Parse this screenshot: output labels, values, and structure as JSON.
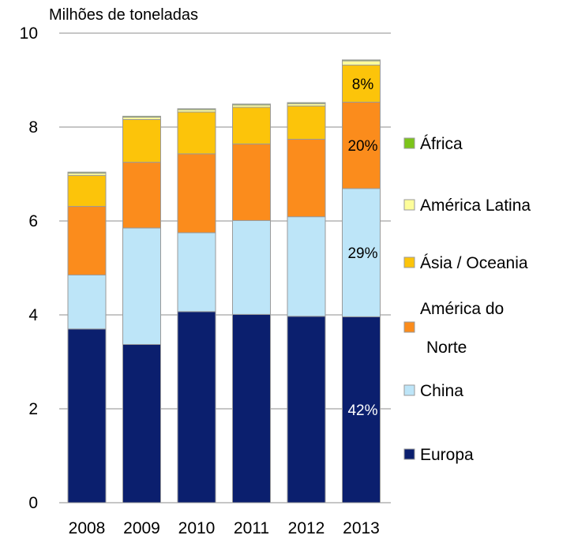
{
  "chart_data": {
    "type": "bar",
    "stacked": true,
    "title": "",
    "ylabel": "Milhões de toneladas",
    "xlabel": "",
    "ylim": [
      0,
      10
    ],
    "yticks": [
      0,
      2,
      4,
      6,
      8,
      10
    ],
    "grid": true,
    "legend_position": "right",
    "categories": [
      "2008",
      "2009",
      "2010",
      "2011",
      "2012",
      "2013"
    ],
    "series": [
      {
        "name": "Europa",
        "color": "#0b1f6e",
        "values": [
          3.7,
          3.37,
          4.07,
          4.01,
          3.97,
          3.96
        ]
      },
      {
        "name": "China",
        "color": "#bde5f8",
        "values": [
          1.15,
          2.48,
          1.68,
          2.0,
          2.12,
          2.73
        ]
      },
      {
        "name": "América do Norte",
        "color": "#fb8c1c",
        "values": [
          1.46,
          1.4,
          1.68,
          1.63,
          1.65,
          1.84
        ]
      },
      {
        "name": "Ásia / Oceania",
        "color": "#fcc40a",
        "values": [
          0.66,
          0.91,
          0.89,
          0.78,
          0.71,
          0.79
        ]
      },
      {
        "name": "América Latina",
        "color": "#fdfd9a",
        "values": [
          0.05,
          0.05,
          0.05,
          0.05,
          0.05,
          0.09
        ]
      },
      {
        "name": "África",
        "color": "#7cc41a",
        "values": [
          0.02,
          0.02,
          0.02,
          0.02,
          0.02,
          0.02
        ]
      }
    ],
    "legend_order": [
      "África",
      "América Latina",
      "Ásia / Oceania",
      "América do Norte",
      "China",
      "Europa"
    ],
    "annotations": [
      {
        "category": "2013",
        "series": "Europa",
        "text": "42%",
        "color": "#ffffff"
      },
      {
        "category": "2013",
        "series": "China",
        "text": "29%",
        "color": "#000000"
      },
      {
        "category": "2013",
        "series": "América do Norte",
        "text": "20%",
        "color": "#000000"
      },
      {
        "category": "2013",
        "series": "Ásia / Oceania",
        "text": "8%",
        "color": "#000000"
      }
    ]
  }
}
